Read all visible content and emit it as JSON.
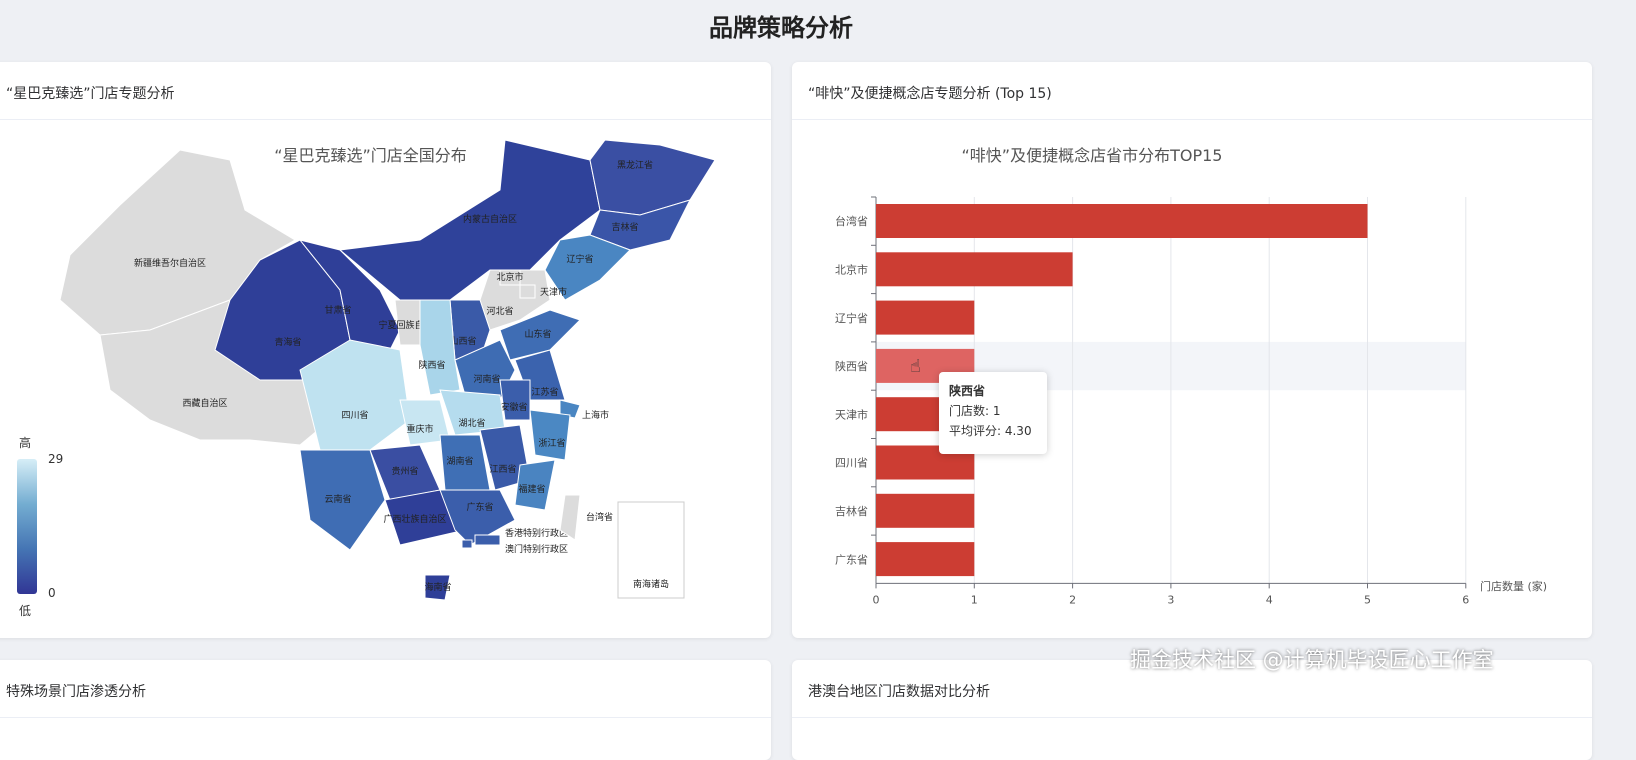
{
  "page_title": "品牌策略分析",
  "cards": {
    "map_card": {
      "header": "“星巴克臻选”门店专题分析",
      "chart_title": "“星巴克臻选”门店全国分布",
      "visual_map": {
        "high_label": "高",
        "low_label": "低",
        "max": 29,
        "min": 0,
        "color_high": "#d6eef7",
        "color_low": "#313695"
      },
      "regions": [
        {
          "name": "新疆维吾尔自治区",
          "color": "#dcdcdc"
        },
        {
          "name": "西藏自治区",
          "color": "#dcdcdc"
        },
        {
          "name": "内蒙古自治区",
          "color": "#2f429a"
        },
        {
          "name": "黑龙江省",
          "color": "#3a4fa3"
        },
        {
          "name": "吉林省",
          "color": "#3a55a8"
        },
        {
          "name": "辽宁省",
          "color": "#4a86c2"
        },
        {
          "name": "北京市",
          "color": "#dcdcdc"
        },
        {
          "name": "天津市",
          "color": "#dcdcdc"
        },
        {
          "name": "河北省",
          "color": "#dcdcdc"
        },
        {
          "name": "甘肃省",
          "color": "#2f3f98"
        },
        {
          "name": "青海省",
          "color": "#2f3f98"
        },
        {
          "name": "宁夏回族自治区",
          "color": "#dcdcdc"
        },
        {
          "name": "山西省",
          "color": "#3a5aa8"
        },
        {
          "name": "陕西省",
          "color": "#a9d5ea"
        },
        {
          "name": "山东省",
          "color": "#3f6db4"
        },
        {
          "name": "河南省",
          "color": "#3e6cb3"
        },
        {
          "name": "江苏省",
          "color": "#3b63ae"
        },
        {
          "name": "安徽省",
          "color": "#3b5eab"
        },
        {
          "name": "上海市",
          "color": "#4a86c2"
        },
        {
          "name": "四川省",
          "color": "#bfe2f0"
        },
        {
          "name": "重庆市",
          "color": "#c8e6f2"
        },
        {
          "name": "湖北省",
          "color": "#b5dcee"
        },
        {
          "name": "浙江省",
          "color": "#4b88c3"
        },
        {
          "name": "贵州省",
          "color": "#3a4ea2"
        },
        {
          "name": "湖南省",
          "color": "#3f6fb5"
        },
        {
          "name": "江西省",
          "color": "#3a5aa8"
        },
        {
          "name": "福建省",
          "color": "#4a84c1"
        },
        {
          "name": "云南省",
          "color": "#3f6db4"
        },
        {
          "name": "广西壮族自治区",
          "color": "#2f3f98"
        },
        {
          "name": "广东省",
          "color": "#3b5eab"
        },
        {
          "name": "香港特别行政区",
          "color": "#3b5eab"
        },
        {
          "name": "澳门特别行政区",
          "color": "#3b5eab"
        },
        {
          "name": "台湾省",
          "color": "#dcdcdc"
        },
        {
          "name": "海南省",
          "color": "#2f3f98"
        },
        {
          "name": "南海诸岛",
          "color": "#dcdcdc"
        }
      ]
    },
    "bar_card": {
      "header": "“啡快”及便捷概念店专题分析 (Top 15)",
      "x_axis_name": "门店数量 (家)",
      "tooltip": {
        "title": "陕西省",
        "line1": "门店数: 1",
        "line2": "平均评分: 4.30"
      }
    },
    "bottom_left": {
      "header": "特殊场景门店渗透分析"
    },
    "bottom_right": {
      "header": "港澳台地区门店数据对比分析"
    }
  },
  "chart_data": {
    "type": "bar",
    "orientation": "horizontal",
    "title": "“啡快”及便捷概念店省市分布TOP15",
    "xlabel": "门店数量 (家)",
    "xlim": [
      0,
      6
    ],
    "xticks": [
      0,
      1,
      2,
      3,
      4,
      5,
      6
    ],
    "grid": true,
    "categories": [
      "台湾省",
      "北京市",
      "辽宁省",
      "陕西省",
      "天津市",
      "四川省",
      "吉林省",
      "广东省"
    ],
    "values": [
      5,
      2,
      1,
      1,
      1,
      1,
      1,
      1
    ],
    "bar_color": "#cc3d33",
    "highlight_color": "#de6462",
    "highlighted": "陕西省"
  },
  "watermark": "掘金技术社区 @计算机毕设匠心工作室"
}
